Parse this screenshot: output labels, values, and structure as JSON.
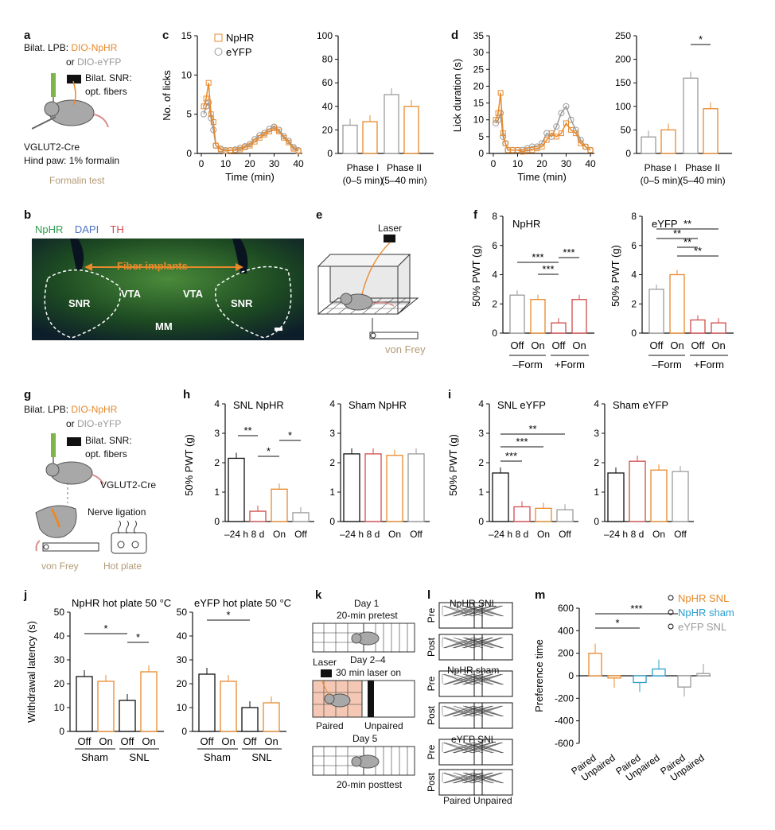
{
  "colors": {
    "npHR": "#e8892b",
    "eYFP": "#9a9a9a",
    "sham": "#2a9fd0",
    "red": "#d24a4a",
    "tan": "#b39a77",
    "histoGreen": "#2f8f2f"
  },
  "panels": {
    "a": "a",
    "b": "b",
    "c": "c",
    "d": "d",
    "e": "e",
    "f": "f",
    "g": "g",
    "h": "h",
    "i": "i",
    "j": "j",
    "k": "k",
    "l": "l",
    "m": "m"
  },
  "a": {
    "line1a": "Bilat. LPB: ",
    "line1b": "DIO-NpHR",
    "line2a": "or ",
    "line2b": "DIO-eYFP",
    "fiber1": "Bilat. SNR:",
    "fiber2": "opt. fibers",
    "mouse": "VGLUT2-Cre",
    "paw": "Hind paw: 1% formalin",
    "test": "Formalin test"
  },
  "b": {
    "ch1": "NpHR",
    "ch2": "DAPI",
    "ch3": "TH",
    "implants": "Fiber implants",
    "snr": "SNR",
    "vta": "VTA",
    "mm": "MM"
  },
  "c": {
    "ylabel": "No. of licks",
    "xlabel": "Time (min)",
    "legend": [
      "NpHR",
      "eYFP"
    ],
    "bar_ylabel": "",
    "phase1": "Phase I",
    "phase1r": "(0–5 min)",
    "phase2": "Phase II",
    "phase2r": "(5–40 min)"
  },
  "d": {
    "ylabel": "Lick duration (s)",
    "xlabel": "Time (min)",
    "star": "*",
    "phase1": "Phase I",
    "phase1r": "(0–5 min)",
    "phase2": "Phase II",
    "phase2r": "(5–40 min)"
  },
  "e": {
    "laser": "Laser",
    "vonfrey": "von Frey"
  },
  "f": {
    "ylabel": "50% PWT (g)",
    "npHR": "NpHR",
    "eYFP": "eYFP",
    "off": "Off",
    "on": "On",
    "form_minus": "–Form",
    "form_plus": "+Form",
    "sig": "***",
    "sig2": "**"
  },
  "g": {
    "line1a": "Bilat. LPB: ",
    "line1b": "DIO-NpHR",
    "line2a": "or ",
    "line2b": "DIO-eYFP",
    "fiber1": "Bilat. SNR:",
    "fiber2": "opt. fibers",
    "mouse": "VGLUT2-Cre",
    "ligation": "Nerve ligation",
    "vonfrey": "von Frey",
    "hotplate": "Hot plate"
  },
  "h": {
    "ylabel": "50% PWT (g)",
    "t1": "SNL NpHR",
    "t2": "Sham NpHR",
    "x": [
      "–24 h",
      "8 d",
      "On",
      "Off"
    ],
    "s2": "**",
    "s1": "*"
  },
  "i": {
    "ylabel": "50% PWT (g)",
    "t1": "SNL eYFP",
    "t2": "Sham eYFP",
    "x": [
      "–24 h",
      "8 d",
      "On",
      "Off"
    ],
    "s3": "***",
    "s2": "**"
  },
  "j": {
    "ylabel": "Withdrawal latency (s)",
    "t1": "NpHR hot plate 50 °C",
    "t2": "eYFP hot plate 50 °C",
    "off": "Off",
    "on": "On",
    "sham": "Sham",
    "snl": "SNL",
    "s1": "*"
  },
  "k": {
    "day1": "Day 1",
    "pre": "20-min pretest",
    "day24": "Day 2–4",
    "laser": "Laser",
    "laser_on": "30 min laser on",
    "paired": "Paired",
    "unpaired": "Unpaired",
    "day5": "Day 5",
    "post": "20-min posttest"
  },
  "l": {
    "g1": "NpHR SNL",
    "g2": "NpHR sham",
    "g3": "eYFP SNL",
    "pre": "Pre",
    "post": "Post",
    "xl": "Paired Unpaired"
  },
  "m": {
    "ylabel": "Preference time",
    "legend": [
      "NpHR SNL",
      "NpHR sham",
      "eYFP SNL"
    ],
    "paired": "Paired",
    "unpaired": "Unpaired",
    "s1": "*",
    "s3": "***"
  },
  "chart_data": [
    {
      "id": "c-time",
      "type": "line",
      "title": "",
      "xlabel": "Time (min)",
      "ylabel": "No. of licks",
      "xlim": [
        0,
        40
      ],
      "ylim": [
        0,
        15
      ],
      "series": [
        {
          "name": "NpHR",
          "x": [
            1,
            2,
            3,
            4,
            5,
            6,
            8,
            10,
            12,
            14,
            16,
            18,
            20,
            22,
            24,
            26,
            28,
            30,
            32,
            34,
            36,
            38,
            40
          ],
          "values": [
            6,
            7,
            9,
            5,
            4,
            1,
            0.5,
            0.3,
            0.4,
            0.4,
            0.5,
            0.8,
            1,
            1.5,
            2,
            2.4,
            2.8,
            3.2,
            2.8,
            2,
            1.4,
            0.6,
            0.3
          ]
        },
        {
          "name": "eYFP",
          "x": [
            1,
            2,
            3,
            4,
            5,
            6,
            8,
            10,
            12,
            14,
            16,
            18,
            20,
            22,
            24,
            26,
            28,
            30,
            32,
            34,
            36,
            38,
            40
          ],
          "values": [
            5,
            6,
            6.5,
            4.5,
            3,
            1,
            0.6,
            0.4,
            0.4,
            0.5,
            0.7,
            0.9,
            1.2,
            1.8,
            2.3,
            2.6,
            3.1,
            3.4,
            3,
            2.2,
            1.6,
            0.8,
            0.4
          ]
        }
      ]
    },
    {
      "id": "c-bar",
      "type": "bar",
      "ylabel": "",
      "ylim": [
        0,
        100
      ],
      "categories": [
        "Phase I",
        "Phase II"
      ],
      "series": [
        {
          "name": "eYFP",
          "values": [
            24,
            50
          ]
        },
        {
          "name": "NpHR",
          "values": [
            27,
            40
          ]
        }
      ]
    },
    {
      "id": "d-time",
      "type": "line",
      "xlabel": "Time (min)",
      "ylabel": "Lick duration (s)",
      "xlim": [
        0,
        40
      ],
      "ylim": [
        0,
        35
      ],
      "series": [
        {
          "name": "NpHR",
          "x": [
            1,
            2,
            3,
            4,
            5,
            6,
            8,
            10,
            12,
            14,
            16,
            18,
            20,
            22,
            24,
            26,
            28,
            30,
            32,
            34,
            36,
            38,
            40
          ],
          "values": [
            10,
            12,
            18,
            6,
            3,
            1,
            1,
            1,
            0.5,
            1,
            1,
            1.5,
            2,
            4,
            6,
            5,
            6,
            9,
            7,
            6,
            3,
            2,
            1
          ]
        },
        {
          "name": "eYFP",
          "x": [
            1,
            2,
            3,
            4,
            5,
            6,
            8,
            10,
            12,
            14,
            16,
            18,
            20,
            22,
            24,
            26,
            28,
            30,
            32,
            34,
            36,
            38,
            40
          ],
          "values": [
            9,
            10,
            12,
            5,
            3,
            1,
            1,
            1,
            1,
            1.5,
            2,
            2,
            3,
            6,
            5,
            8,
            12,
            14,
            10,
            7,
            4,
            2,
            1
          ]
        }
      ]
    },
    {
      "id": "d-bar",
      "type": "bar",
      "ylim": [
        0,
        250
      ],
      "categories": [
        "Phase I",
        "Phase II"
      ],
      "series": [
        {
          "name": "eYFP",
          "values": [
            35,
            160
          ]
        },
        {
          "name": "NpHR",
          "values": [
            50,
            95
          ]
        }
      ]
    },
    {
      "id": "f-npHR",
      "type": "bar",
      "ylabel": "50% PWT (g)",
      "ylim": [
        0,
        8
      ],
      "categories": [
        "Off",
        "On",
        "Off",
        "On"
      ],
      "values": [
        2.6,
        2.3,
        0.7,
        2.3
      ]
    },
    {
      "id": "f-eYFP",
      "type": "bar",
      "ylabel": "50% PWT (g)",
      "ylim": [
        0,
        8
      ],
      "categories": [
        "Off",
        "On",
        "Off",
        "On"
      ],
      "values": [
        3.0,
        4.0,
        0.9,
        0.7
      ]
    },
    {
      "id": "h-snl",
      "type": "bar",
      "ylabel": "50% PWT (g)",
      "ylim": [
        0,
        4
      ],
      "categories": [
        "–24 h",
        "8 d",
        "On",
        "Off"
      ],
      "values": [
        2.15,
        0.35,
        1.1,
        0.3
      ]
    },
    {
      "id": "h-sham",
      "type": "bar",
      "ylim": [
        0,
        4
      ],
      "categories": [
        "–24 h",
        "8 d",
        "On",
        "Off"
      ],
      "values": [
        2.3,
        2.3,
        2.25,
        2.3
      ]
    },
    {
      "id": "i-snl",
      "type": "bar",
      "ylabel": "50% PWT (g)",
      "ylim": [
        0,
        4
      ],
      "categories": [
        "–24 h",
        "8 d",
        "On",
        "Off"
      ],
      "values": [
        1.65,
        0.5,
        0.45,
        0.4
      ]
    },
    {
      "id": "i-sham",
      "type": "bar",
      "ylim": [
        0,
        4
      ],
      "categories": [
        "–24 h",
        "8 d",
        "On",
        "Off"
      ],
      "values": [
        1.65,
        2.05,
        1.75,
        1.7
      ]
    },
    {
      "id": "j-npHR",
      "type": "bar",
      "ylabel": "Withdrawal latency (s)",
      "ylim": [
        0,
        50
      ],
      "categories": [
        "Off",
        "On",
        "Off",
        "On"
      ],
      "values": [
        23,
        21,
        13,
        25
      ]
    },
    {
      "id": "j-eYFP",
      "type": "bar",
      "ylim": [
        0,
        50
      ],
      "categories": [
        "Off",
        "On",
        "Off",
        "On"
      ],
      "values": [
        24,
        21,
        10,
        12
      ]
    },
    {
      "id": "m",
      "type": "bar",
      "ylabel": "Preference time",
      "ylim": [
        -600,
        600
      ],
      "categories": [
        "Paired",
        "Unpaired",
        "Paired",
        "Unpaired",
        "Paired",
        "Unpaired"
      ],
      "values": [
        200,
        -20,
        -60,
        60,
        -100,
        20
      ]
    }
  ]
}
